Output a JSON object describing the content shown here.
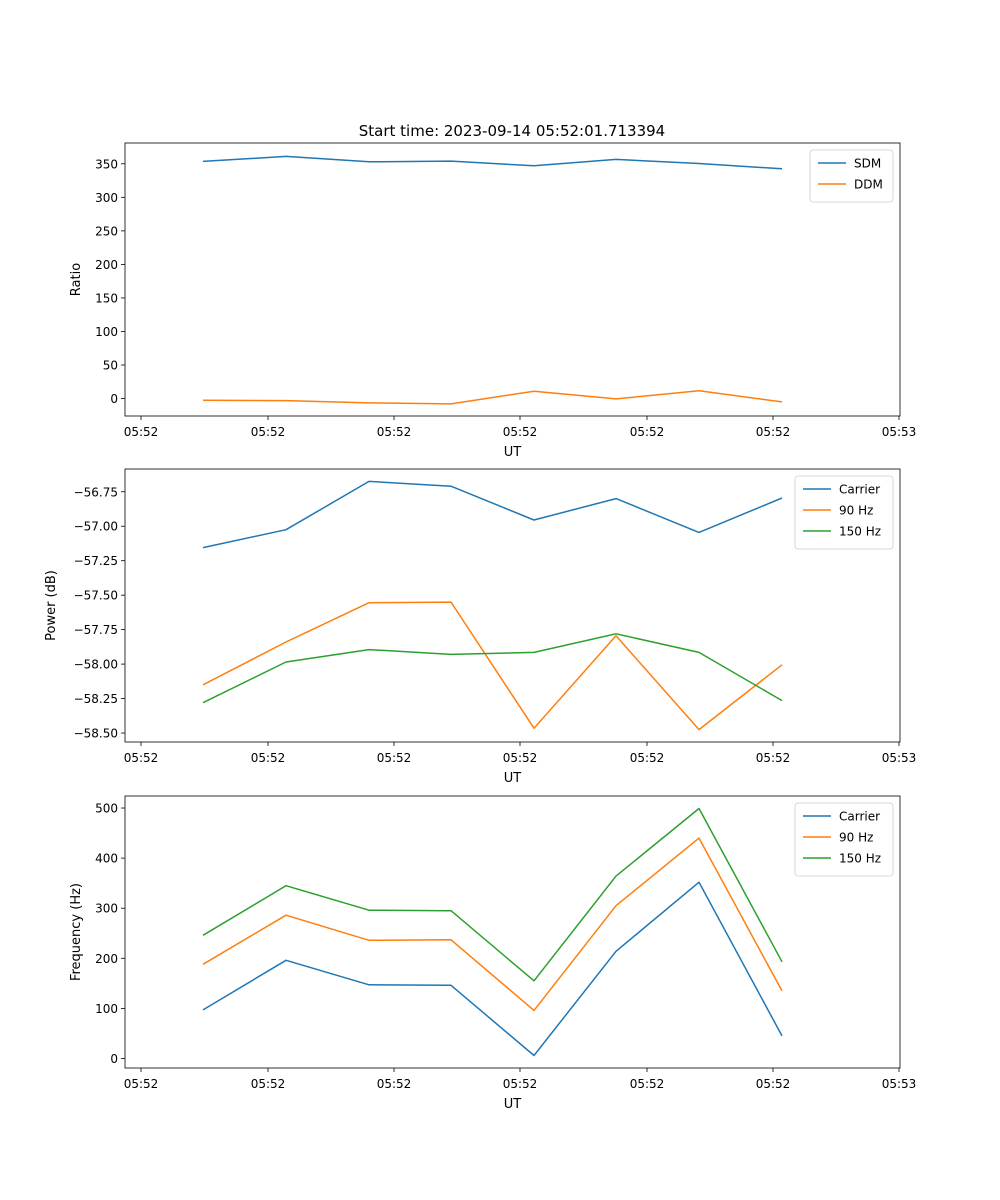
{
  "figure_title": "Start time: 2023-09-14 05:52:01.713394",
  "colors": {
    "blue": "#1f77b4",
    "orange": "#ff7f0e",
    "green": "#2ca02c"
  },
  "chart_data": [
    {
      "type": "line",
      "xlabel": "UT",
      "ylabel": "Ratio",
      "x_ticks": [
        "05:52",
        "05:52",
        "05:52",
        "05:52",
        "05:52",
        "05:52",
        "05:53"
      ],
      "ylim": [
        -26,
        381
      ],
      "y_ticks": [
        0,
        50,
        100,
        150,
        200,
        250,
        300,
        350
      ],
      "y_tick_labels": [
        "0",
        "50",
        "100",
        "150",
        "200",
        "250",
        "300",
        "350"
      ],
      "legend_position": "top-right",
      "series": [
        {
          "name": "SDM",
          "color": "#1f77b4",
          "values": [
            353.5,
            361,
            353,
            354,
            347,
            356.5,
            350.5,
            342.5
          ]
        },
        {
          "name": "DDM",
          "color": "#ff7f0e",
          "values": [
            -2.5,
            -3,
            -6.5,
            -8,
            11,
            -0.5,
            11.5,
            -5
          ]
        }
      ]
    },
    {
      "type": "line",
      "xlabel": "UT",
      "ylabel": "Power (dB)",
      "x_ticks": [
        "05:52",
        "05:52",
        "05:52",
        "05:52",
        "05:52",
        "05:52",
        "05:53"
      ],
      "ylim": [
        -58.565,
        -56.585
      ],
      "y_ticks": [
        -56.75,
        -57.0,
        -57.25,
        -57.5,
        -57.75,
        -58.0,
        -58.25,
        -58.5
      ],
      "y_tick_labels": [
        "−56.75",
        "−57.00",
        "−57.25",
        "−57.50",
        "−57.75",
        "−58.00",
        "−58.25",
        "−58.50"
      ],
      "legend_position": "top-right",
      "series": [
        {
          "name": "Carrier",
          "color": "#1f77b4",
          "values": [
            -57.155,
            -57.025,
            -56.675,
            -56.71,
            -56.955,
            -56.8,
            -57.045,
            -56.795
          ]
        },
        {
          "name": "90 Hz",
          "color": "#ff7f0e",
          "values": [
            -58.15,
            -57.84,
            -57.555,
            -57.55,
            -58.465,
            -57.795,
            -58.475,
            -58.005
          ]
        },
        {
          "name": "150 Hz",
          "color": "#2ca02c",
          "values": [
            -58.28,
            -57.985,
            -57.895,
            -57.93,
            -57.915,
            -57.78,
            -57.915,
            -58.265
          ]
        }
      ]
    },
    {
      "type": "line",
      "xlabel": "UT",
      "ylabel": "Frequency (Hz)",
      "x_ticks": [
        "05:52",
        "05:52",
        "05:52",
        "05:52",
        "05:52",
        "05:52",
        "05:53"
      ],
      "ylim": [
        -19,
        524
      ],
      "y_ticks": [
        0,
        100,
        200,
        300,
        400,
        500
      ],
      "y_tick_labels": [
        "0",
        "100",
        "200",
        "300",
        "400",
        "500"
      ],
      "legend_position": "top-right",
      "series": [
        {
          "name": "Carrier",
          "color": "#1f77b4",
          "values": [
            97,
            196,
            147,
            146,
            6,
            214,
            352,
            45
          ]
        },
        {
          "name": "90 Hz",
          "color": "#ff7f0e",
          "values": [
            188,
            286,
            236,
            237,
            96,
            305,
            440,
            135
          ]
        },
        {
          "name": "150 Hz",
          "color": "#2ca02c",
          "values": [
            246,
            345,
            296,
            295,
            155,
            364,
            499,
            193
          ]
        }
      ]
    }
  ]
}
